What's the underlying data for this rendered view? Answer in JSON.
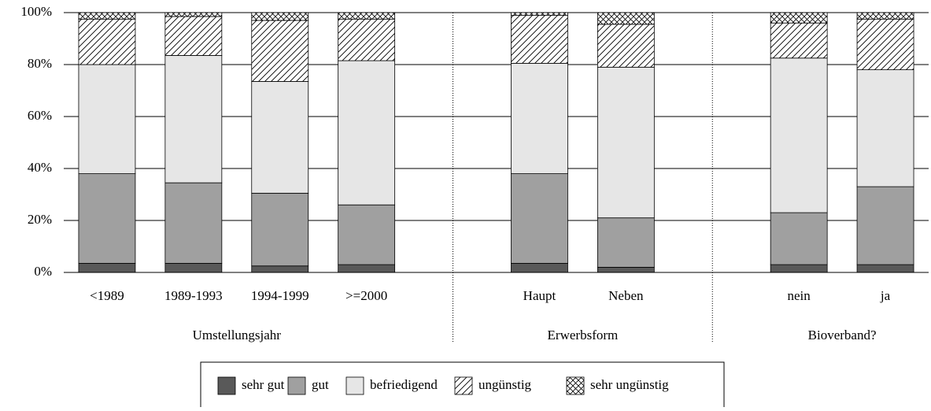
{
  "chart_data": {
    "type": "stacked-bar",
    "groups": [
      {
        "name": "Umstellungsjahr",
        "categories": [
          "<1989",
          "1989-1993",
          "1994-1999",
          ">=2000"
        ]
      },
      {
        "name": "Erwerbsform",
        "categories": [
          "Haupt",
          "Neben"
        ]
      },
      {
        "name": "Bioverband?",
        "categories": [
          "nein",
          "ja"
        ]
      }
    ],
    "series": [
      {
        "name": "sehr gut",
        "color": "#595959",
        "values": [
          3.5,
          3.5,
          2.5,
          3,
          3.5,
          2,
          3,
          3
        ]
      },
      {
        "name": "gut",
        "color": "#a0a0a0",
        "values": [
          34.5,
          31,
          28,
          23,
          34.5,
          19,
          20,
          30
        ]
      },
      {
        "name": "befriedigend",
        "color": "#e6e6e6",
        "values": [
          42,
          49,
          43,
          55.5,
          42.5,
          58,
          59.5,
          45
        ]
      },
      {
        "name": "ungünstig",
        "color": "#ffffff",
        "pattern": "hatch",
        "values": [
          17.5,
          15,
          23.5,
          16,
          18.5,
          16.5,
          13.5,
          19.5
        ]
      },
      {
        "name": "sehr ungünstig",
        "color": "#ffffff",
        "pattern": "cross",
        "values": [
          2.5,
          1.5,
          3,
          2.5,
          1,
          4.5,
          4,
          2.5
        ]
      }
    ],
    "ylim": [
      0,
      100
    ],
    "yticks": [
      {
        "value": 0,
        "label": "0%"
      },
      {
        "value": 20,
        "label": "20%"
      },
      {
        "value": 40,
        "label": "40%"
      },
      {
        "value": 60,
        "label": "60%"
      },
      {
        "value": 80,
        "label": "80%"
      },
      {
        "value": 100,
        "label": "100%"
      }
    ],
    "grid": true,
    "legend": "bottom"
  }
}
